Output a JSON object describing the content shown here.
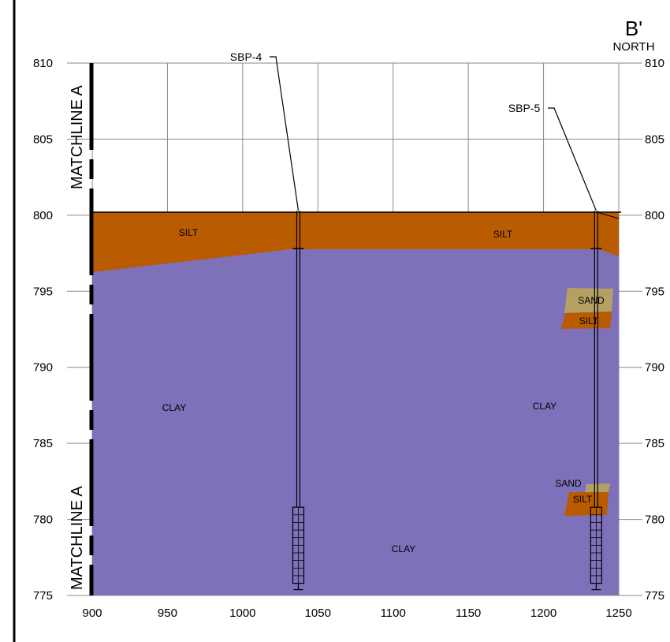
{
  "section": {
    "end_label": "B'",
    "direction": "NORTH",
    "match_line_text": "MATCHLINE A"
  },
  "axes": {
    "x_ticks": [
      "900",
      "950",
      "1000",
      "1050",
      "1100",
      "1150",
      "1200",
      "1250"
    ],
    "y_ticks": [
      "810",
      "805",
      "800",
      "795",
      "790",
      "785",
      "780",
      "775"
    ]
  },
  "colors": {
    "silt": "#b95b00",
    "clay": "#7e71ba",
    "sand": "#b5a064",
    "grid": "#8a8a8a"
  },
  "borings": [
    {
      "name": "SBP-4",
      "station": 1037,
      "ground_elev": 800.3,
      "screen_top": 780.8,
      "screen_bottom": 775.8
    },
    {
      "name": "SBP-5",
      "station": 1235,
      "ground_elev": 800.3,
      "screen_top": 780.8,
      "screen_bottom": 775.8
    }
  ],
  "layer_labels": {
    "silt_left": "SILT",
    "silt_right": "SILT",
    "sand_upper": "SAND",
    "silt_upper_lens": "SILT",
    "clay_left": "CLAY",
    "clay_right": "CLAY",
    "sand_lower": "SAND",
    "silt_lower_lens": "SILT",
    "clay_bottom": "CLAY"
  }
}
